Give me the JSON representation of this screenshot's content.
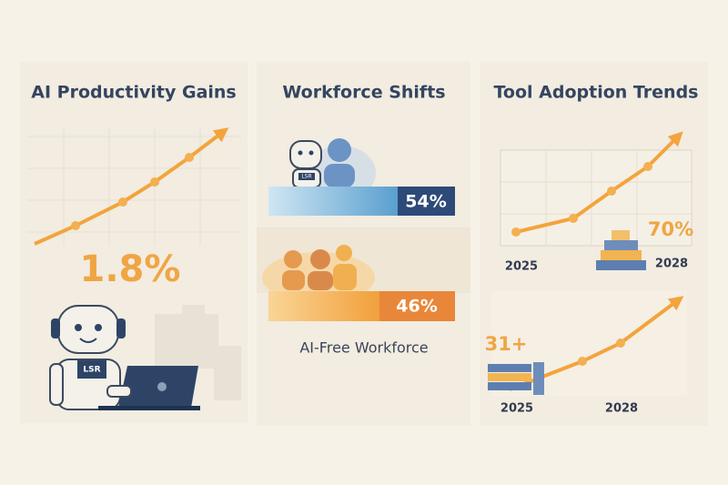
{
  "panels": [
    {
      "title": "AI Productivity Gains",
      "stat": "1.8%",
      "badge": "LSR"
    },
    {
      "title": "Workforce Shifts",
      "bars": [
        {
          "label": "54%"
        },
        {
          "label": "46%"
        }
      ],
      "caption": "AI-Free Workforce",
      "badge": "LSR"
    },
    {
      "title": "Tool Adoption Trends",
      "charts": [
        {
          "start": "2025",
          "end": "2028",
          "stat": "70%"
        },
        {
          "start": "2025",
          "end": "2028",
          "stat": "31+"
        }
      ]
    }
  ]
}
